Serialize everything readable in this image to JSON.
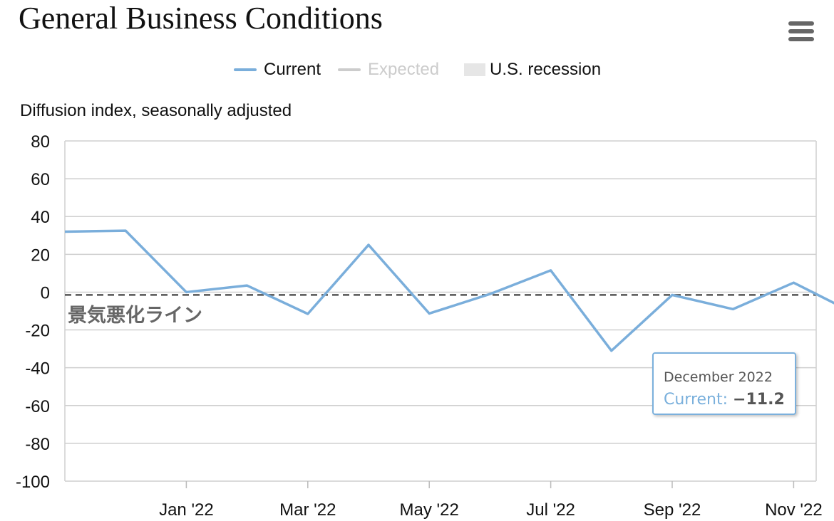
{
  "title": "General Business Conditions",
  "menu_icon": "hamburger-menu-icon",
  "legend": [
    {
      "label": "Current",
      "color": "#7aaedb",
      "kind": "line",
      "muted": false
    },
    {
      "label": "Expected",
      "color": "#cccccc",
      "kind": "line",
      "muted": true
    },
    {
      "label": "U.S. recession",
      "color": "#e6e6e6",
      "kind": "box",
      "muted": false
    }
  ],
  "tooltip": {
    "date": "December 2022",
    "series": "Current",
    "value": "−11.2"
  },
  "chart_data": {
    "type": "line",
    "title": "General Business Conditions",
    "ylabel": "Diffusion index, seasonally adjusted",
    "xlabel": "",
    "ylim": [
      -100,
      80
    ],
    "yticks": [
      80,
      60,
      40,
      20,
      0,
      -20,
      -40,
      -60,
      -80,
      -100
    ],
    "xticks": [
      "Jan '22",
      "Mar '22",
      "May '22",
      "Jul '22",
      "Sep '22",
      "Nov '22"
    ],
    "grid": true,
    "legend_position": "top-center",
    "series": [
      {
        "name": "Current",
        "color": "#7aaedb",
        "x": [
          "Nov 2021",
          "Dec 2021",
          "Jan 2022",
          "Feb 2022",
          "Mar 2022",
          "Apr 2022",
          "May 2022",
          "Jun 2022",
          "Jul 2022",
          "Aug 2022",
          "Sep 2022",
          "Oct 2022",
          "Nov 2022",
          "Dec 2022"
        ],
        "values": [
          32,
          32.5,
          0,
          3.5,
          -11.5,
          25,
          -11.3,
          -1,
          11.5,
          -31,
          -1.5,
          -9,
          5,
          -11.2
        ]
      }
    ],
    "reference_line": {
      "value": -1.5,
      "label": "景気悪化ライン",
      "style": "dashed"
    }
  }
}
